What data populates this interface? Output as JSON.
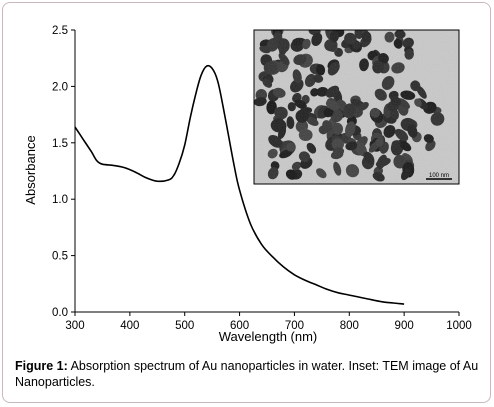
{
  "chart_data": {
    "type": "line",
    "xlabel": "Wavelength (nm)",
    "ylabel": "Absorbance",
    "xlim": [
      300,
      1000
    ],
    "ylim": [
      0,
      2.5
    ],
    "x_ticks": [
      "300",
      "400",
      "500",
      "600",
      "700",
      "800",
      "900",
      "1000"
    ],
    "y_ticks": [
      "0.0",
      "0.5",
      "1.0",
      "1.5",
      "2.0",
      "2.5"
    ],
    "grid": false,
    "series": [
      {
        "color": "#000000",
        "points": [
          [
            300,
            1.64
          ],
          [
            315,
            1.53
          ],
          [
            330,
            1.42
          ],
          [
            340,
            1.34
          ],
          [
            350,
            1.31
          ],
          [
            370,
            1.3
          ],
          [
            390,
            1.28
          ],
          [
            410,
            1.24
          ],
          [
            430,
            1.19
          ],
          [
            450,
            1.16
          ],
          [
            470,
            1.17
          ],
          [
            480,
            1.21
          ],
          [
            490,
            1.32
          ],
          [
            500,
            1.48
          ],
          [
            510,
            1.72
          ],
          [
            520,
            1.93
          ],
          [
            530,
            2.1
          ],
          [
            540,
            2.18
          ],
          [
            550,
            2.16
          ],
          [
            560,
            2.05
          ],
          [
            570,
            1.82
          ],
          [
            580,
            1.56
          ],
          [
            590,
            1.3
          ],
          [
            600,
            1.08
          ],
          [
            620,
            0.78
          ],
          [
            640,
            0.6
          ],
          [
            660,
            0.49
          ],
          [
            680,
            0.4
          ],
          [
            700,
            0.33
          ],
          [
            720,
            0.28
          ],
          [
            740,
            0.24
          ],
          [
            760,
            0.2
          ],
          [
            780,
            0.17
          ],
          [
            800,
            0.15
          ],
          [
            830,
            0.12
          ],
          [
            860,
            0.09
          ],
          [
            880,
            0.08
          ],
          [
            900,
            0.07
          ]
        ]
      }
    ],
    "inset": {
      "kind": "TEM image",
      "scale_bar_label": "100 nm"
    }
  },
  "caption": {
    "label": "Figure 1:",
    "text": " Absorption spectrum of Au nanoparticles in water. Inset: TEM image of Au Nanoparticles."
  }
}
